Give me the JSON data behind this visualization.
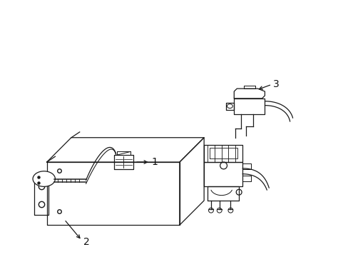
{
  "background_color": "#ffffff",
  "line_color": "#1a1a1a",
  "line_width": 0.9,
  "label_fontsize": 10,
  "label_color": "#111111",
  "figsize": [
    4.89,
    3.6
  ],
  "dpi": 100,
  "labels": {
    "1": [
      237,
      290
    ],
    "2": [
      118,
      320
    ],
    "3": [
      415,
      128
    ]
  }
}
